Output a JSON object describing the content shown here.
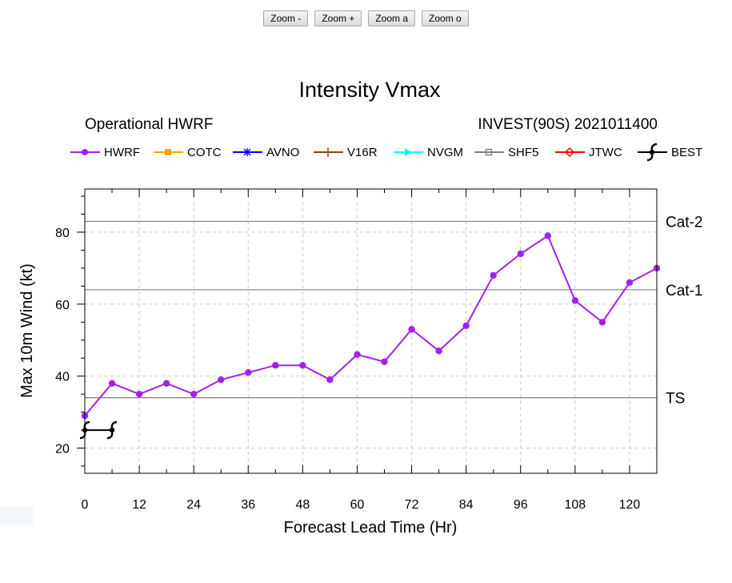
{
  "toolbar": {
    "zoom_out": "Zoom -",
    "zoom_in": "Zoom +",
    "zoom_a": "Zoom a",
    "zoom_o": "Zoom o"
  },
  "chart_data": {
    "type": "line",
    "title": "Intensity Vmax",
    "subtitle_left": "Operational HWRF",
    "subtitle_right": "INVEST(90S) 2021011400",
    "xlabel": "Forecast Lead Time (Hr)",
    "ylabel": "Max 10m Wind (kt)",
    "xlim": [
      0,
      126
    ],
    "ylim": [
      13,
      92
    ],
    "xticks": [
      0,
      12,
      24,
      36,
      48,
      60,
      72,
      84,
      96,
      108,
      120
    ],
    "yticks": [
      20,
      40,
      60,
      80
    ],
    "grid": true,
    "legend": [
      {
        "name": "HWRF",
        "color": "#a020f0",
        "marker": "circle"
      },
      {
        "name": "COTC",
        "color": "#ffa500",
        "marker": "square"
      },
      {
        "name": "AVNO",
        "color": "#0000ff",
        "marker": "asterisk"
      },
      {
        "name": "V16R",
        "color": "#8b4513",
        "marker": "plus"
      },
      {
        "name": "NVGM",
        "color": "#00ffff",
        "marker": "triangle"
      },
      {
        "name": "SHF5",
        "color": "#808080",
        "marker": "square-open"
      },
      {
        "name": "JTWC",
        "color": "#ff0000",
        "marker": "diamond"
      },
      {
        "name": "BEST",
        "color": "#000000",
        "marker": "hurricane"
      }
    ],
    "thresholds": [
      {
        "label": "TS",
        "value": 34
      },
      {
        "label": "Cat-1",
        "value": 64
      },
      {
        "label": "Cat-2",
        "value": 83
      }
    ],
    "series": [
      {
        "name": "HWRF",
        "x": [
          0,
          6,
          12,
          18,
          24,
          30,
          36,
          42,
          48,
          54,
          60,
          66,
          72,
          78,
          84,
          90,
          96,
          102,
          108,
          114,
          120,
          126
        ],
        "y": [
          29,
          38,
          35,
          38,
          35,
          39,
          41,
          43,
          43,
          39,
          46,
          44,
          53,
          47,
          54,
          68,
          74,
          79,
          61,
          55,
          66,
          70
        ]
      },
      {
        "name": "BEST",
        "x": [
          0,
          6
        ],
        "y": [
          25,
          25
        ]
      }
    ]
  }
}
